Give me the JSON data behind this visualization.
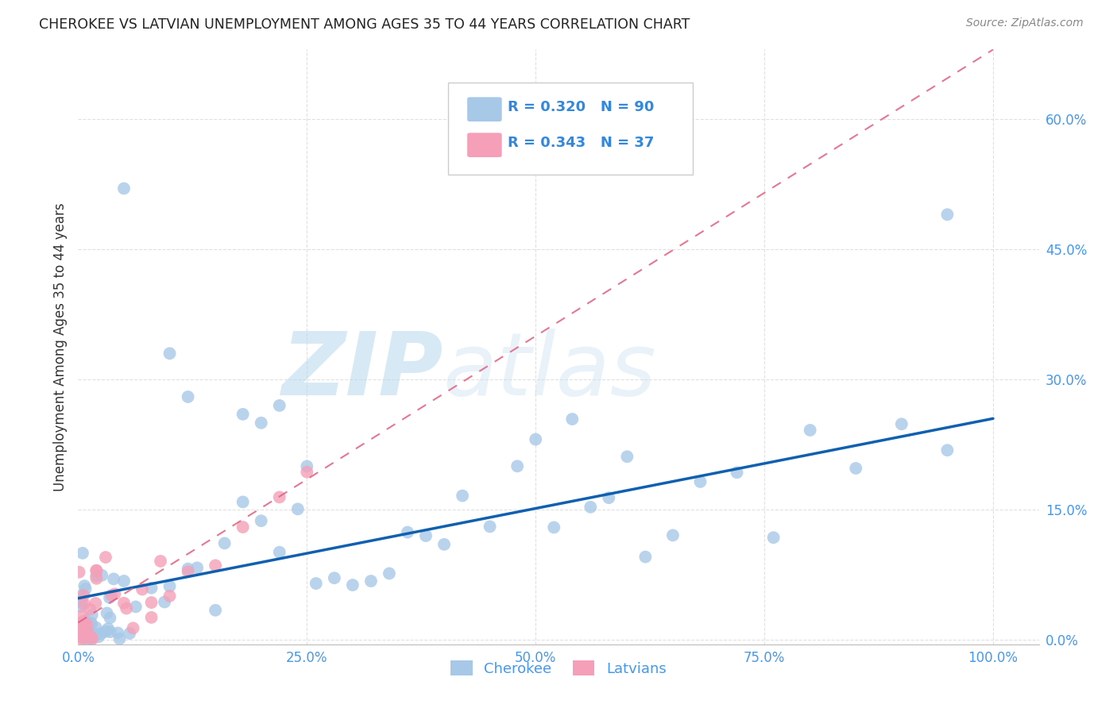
{
  "title": "CHEROKEE VS LATVIAN UNEMPLOYMENT AMONG AGES 35 TO 44 YEARS CORRELATION CHART",
  "source": "Source: ZipAtlas.com",
  "ylabel": "Unemployment Among Ages 35 to 44 years",
  "xlim": [
    0.0,
    1.05
  ],
  "ylim": [
    -0.005,
    0.68
  ],
  "cherokee_R": 0.32,
  "cherokee_N": 90,
  "latvian_R": 0.343,
  "latvian_N": 37,
  "cherokee_color": "#a8c8e8",
  "latvian_color": "#f5a0b8",
  "cherokee_line_color": "#1060b0",
  "latvian_line_color": "#e06080",
  "background_color": "#ffffff",
  "grid_color": "#dddddd",
  "x_tick_vals": [
    0.0,
    0.25,
    0.5,
    0.75,
    1.0
  ],
  "y_tick_vals": [
    0.0,
    0.15,
    0.3,
    0.45,
    0.6
  ],
  "x_tick_labels": [
    "0.0%",
    "25.0%",
    "50.0%",
    "75.0%",
    "100.0%"
  ],
  "y_tick_labels": [
    "0.0%",
    "15.0%",
    "30.0%",
    "45.0%",
    "60.0%"
  ],
  "cherokee_line_x": [
    0.0,
    1.0
  ],
  "cherokee_line_y": [
    0.048,
    0.255
  ],
  "latvian_line_x": [
    0.0,
    1.0
  ],
  "latvian_line_y": [
    0.02,
    0.68
  ]
}
